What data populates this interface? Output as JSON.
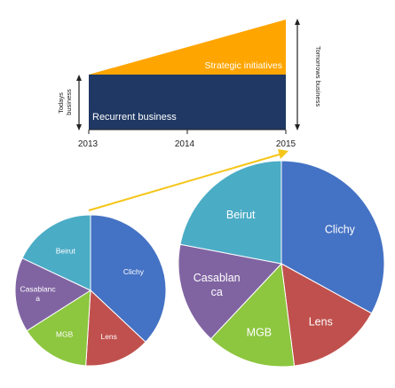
{
  "bar": {
    "years": [
      "2013",
      "2014",
      "2015"
    ],
    "top_label": "Strategic initiatives",
    "bottom_label": "Recurrent business",
    "left_label_line1": "Todays",
    "left_label_line2": "business",
    "right_label": "Tomorrows business",
    "colors": {
      "top": "#FFA500",
      "bottom": "#1F3864"
    }
  },
  "pies": [
    {
      "slices": [
        {
          "label": "Clichy",
          "value": 37,
          "color": "#4472C4"
        },
        {
          "label": "Lens",
          "value": 14,
          "color": "#C0504D"
        },
        {
          "label": "MGB",
          "value": 15,
          "color": "#8DC63F"
        },
        {
          "label": "Casablanca",
          "label_lines": [
            "Casablanc",
            "a"
          ],
          "value": 16,
          "color": "#8064A2"
        },
        {
          "label": "Beirut",
          "value": 18,
          "color": "#4BACC6"
        }
      ]
    },
    {
      "slices": [
        {
          "label": "Clichy",
          "value": 33,
          "color": "#4472C4"
        },
        {
          "label": "Lens",
          "value": 15,
          "color": "#C0504D"
        },
        {
          "label": "MGB",
          "value": 14,
          "color": "#8DC63F"
        },
        {
          "label": "Casablanca",
          "label_lines": [
            "Casablan",
            "ca"
          ],
          "value": 16,
          "color": "#8064A2"
        },
        {
          "label": "Beirut",
          "value": 22,
          "color": "#4BACC6"
        }
      ]
    }
  ],
  "colors": {
    "connector": "#F5C518",
    "text_light": "#FFFFFF",
    "text_dark": "#222222"
  }
}
